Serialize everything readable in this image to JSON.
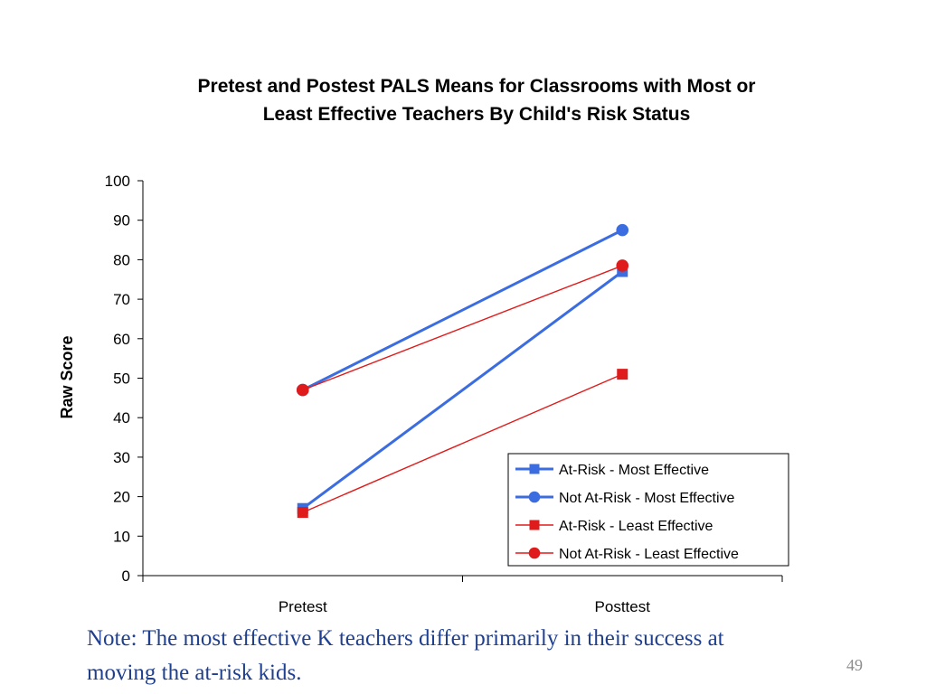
{
  "chart_data": {
    "type": "line",
    "title": "Pretest and Postest PALS Means for Classrooms with Most or Least Effective Teachers By Child's Risk Status",
    "title_lines": [
      "Pretest and Postest PALS Means for Classrooms with Most or",
      "Least Effective Teachers By Child's Risk Status"
    ],
    "xlabel": "",
    "ylabel": "Raw Score",
    "categories": [
      "Pretest",
      "Posttest"
    ],
    "ylim": [
      0,
      100
    ],
    "yticks": [
      0,
      10,
      20,
      30,
      40,
      50,
      60,
      70,
      80,
      90,
      100
    ],
    "grid": false,
    "legend_position": "bottom-right",
    "series": [
      {
        "name": "At-Risk - Most Effective",
        "values": [
          17,
          77
        ],
        "color": "#3b6de0",
        "marker": "square",
        "line": "thick"
      },
      {
        "name": "Not At-Risk - Most Effective",
        "values": [
          47,
          87.5
        ],
        "color": "#3b6de0",
        "marker": "circle",
        "line": "thick"
      },
      {
        "name": "At-Risk - Least Effective",
        "values": [
          16,
          51
        ],
        "color": "#e01b1b",
        "marker": "square",
        "line": "thin"
      },
      {
        "name": "Not At-Risk - Least Effective",
        "values": [
          47,
          78.5
        ],
        "color": "#e01b1b",
        "marker": "circle",
        "line": "thin"
      }
    ]
  },
  "note": {
    "line1": "Note: The most effective K teachers differ primarily in their success at",
    "line2": "moving the at-risk kids."
  },
  "page_number": "49"
}
